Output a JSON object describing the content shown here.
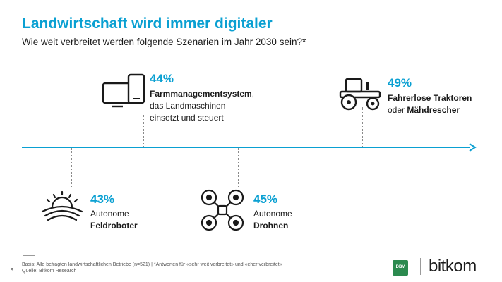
{
  "title": "Landwirtschaft wird immer digitaler",
  "subtitle": "Wie weit verbreitet werden folgende Szenarien im Jahr 2030 sein?*",
  "scenarios": [
    {
      "id": "farmmanagement",
      "percent": "44%",
      "value": 44,
      "icon": "devices-icon",
      "line1_bold": "Farmmanagementsystem",
      "line1_rest": ",",
      "line2": "das Landmaschinen",
      "line3": "einsetzt und steuert"
    },
    {
      "id": "traktoren",
      "percent": "49%",
      "value": 49,
      "icon": "tractor-icon",
      "line1_bold": "Fahrerlose Traktoren",
      "line2_pre": "oder ",
      "line2_bold": "Mähdrescher"
    },
    {
      "id": "feldroboter",
      "percent": "43%",
      "value": 43,
      "icon": "field-sun-icon",
      "line1": "Autonome",
      "line2_bold": "Feldroboter"
    },
    {
      "id": "drohnen",
      "percent": "45%",
      "value": 45,
      "icon": "drone-icon",
      "line1": "Autonome",
      "line2_bold": "Drohnen"
    }
  ],
  "footer": {
    "basis": "Basis: Alle befragten landwirtschaftlichen Betriebe (n=521) | *Antworten für «sehr weit verbreitet» und «eher verbreitet»",
    "source": "Quelle: Bitkom Research",
    "page_number": "9"
  },
  "logos": {
    "dbv_text": "DBV",
    "bitkom_text": "bitkom"
  },
  "colors": {
    "accent": "#0aa0d2",
    "text": "#1a1a1a",
    "dbv_green": "#2b8a4f"
  }
}
